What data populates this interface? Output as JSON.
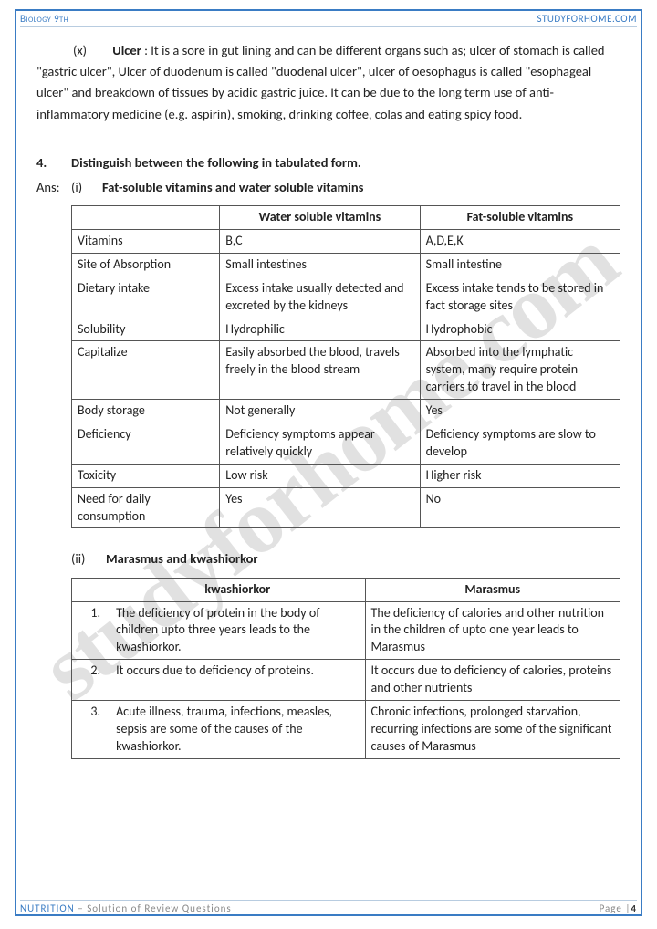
{
  "header": {
    "left": "Biology 9th",
    "right": "STUDYFORHOME.COM"
  },
  "watermark": "studyforhome.com",
  "ulcer": {
    "num": "(x)",
    "term": "Ulcer",
    "text": ": It is a sore in gut lining and can be different organs such as; ulcer of stomach is called \"gastric ulcer\", Ulcer of duodenum is called \"duodenal ulcer\", ulcer of oesophagus is called \"esophageal ulcer\" and breakdown of tissues by acidic gastric juice. It can be due to the long term use of anti-inflammatory medicine (e.g. aspirin), smoking, drinking coffee, colas and eating spicy food."
  },
  "q4": {
    "num": "4.",
    "text": "Distinguish between the following in tabulated form."
  },
  "ans": {
    "label": "Ans:",
    "i": "(i)",
    "text": "Fat-soluble vitamins and water soluble vitamins"
  },
  "table1": {
    "headers": [
      "",
      "Water soluble vitamins",
      "Fat-soluble vitamins"
    ],
    "rows": [
      [
        "Vitamins",
        "B,C",
        "A,D,E,K"
      ],
      [
        "Site of Absorption",
        "Small intestines",
        "Small intestine"
      ],
      [
        "Dietary intake",
        "Excess intake usually detected and excreted by the kidneys",
        "Excess intake tends to be stored in fact storage sites"
      ],
      [
        "Solubility",
        "Hydrophilic",
        "Hydrophobic"
      ],
      [
        "Capitalize",
        "Easily absorbed the blood, travels freely in the blood stream",
        "Absorbed into the lymphatic system, many require protein carriers to travel in the blood"
      ],
      [
        "Body storage",
        "Not generally",
        "Yes"
      ],
      [
        "Deficiency",
        "Deficiency symptoms appear relatively quickly",
        "Deficiency symptoms are slow to develop"
      ],
      [
        "Toxicity",
        "Low risk",
        "Higher risk"
      ],
      [
        "Need for daily consumption",
        "Yes",
        "No"
      ]
    ],
    "border_color": "#555555",
    "font_size": 14
  },
  "sec2": {
    "ii": "(ii)",
    "text": "Marasmus and kwashiorkor"
  },
  "table2": {
    "headers": [
      "",
      "kwashiorkor",
      "Marasmus"
    ],
    "rows": [
      [
        "1.",
        "The deficiency of protein in the body of children upto three years leads to the kwashiorkor.",
        "The deficiency of calories and other nutrition in the children of upto one year leads to Marasmus"
      ],
      [
        "2.",
        "It occurs due to deficiency of proteins.",
        "It occurs due to deficiency of calories, proteins and other nutrients"
      ],
      [
        "3.",
        "Acute illness, trauma, infections, measles, sepsis are some of the causes of the kwashiorkor.",
        "Chronic infections, prolonged starvation, recurring infections are some of the significant causes of Marasmus"
      ]
    ],
    "border_color": "#555555",
    "font_size": 14
  },
  "footer": {
    "chapter": "NUTRITION",
    "sub": " – Solution of Review Questions",
    "page_label": "Page |",
    "page_num": "4"
  },
  "colors": {
    "border": "#3a7cc4",
    "accent": "#3a7cc4",
    "text": "#222222",
    "watermark": "rgba(120,120,120,0.22)"
  }
}
